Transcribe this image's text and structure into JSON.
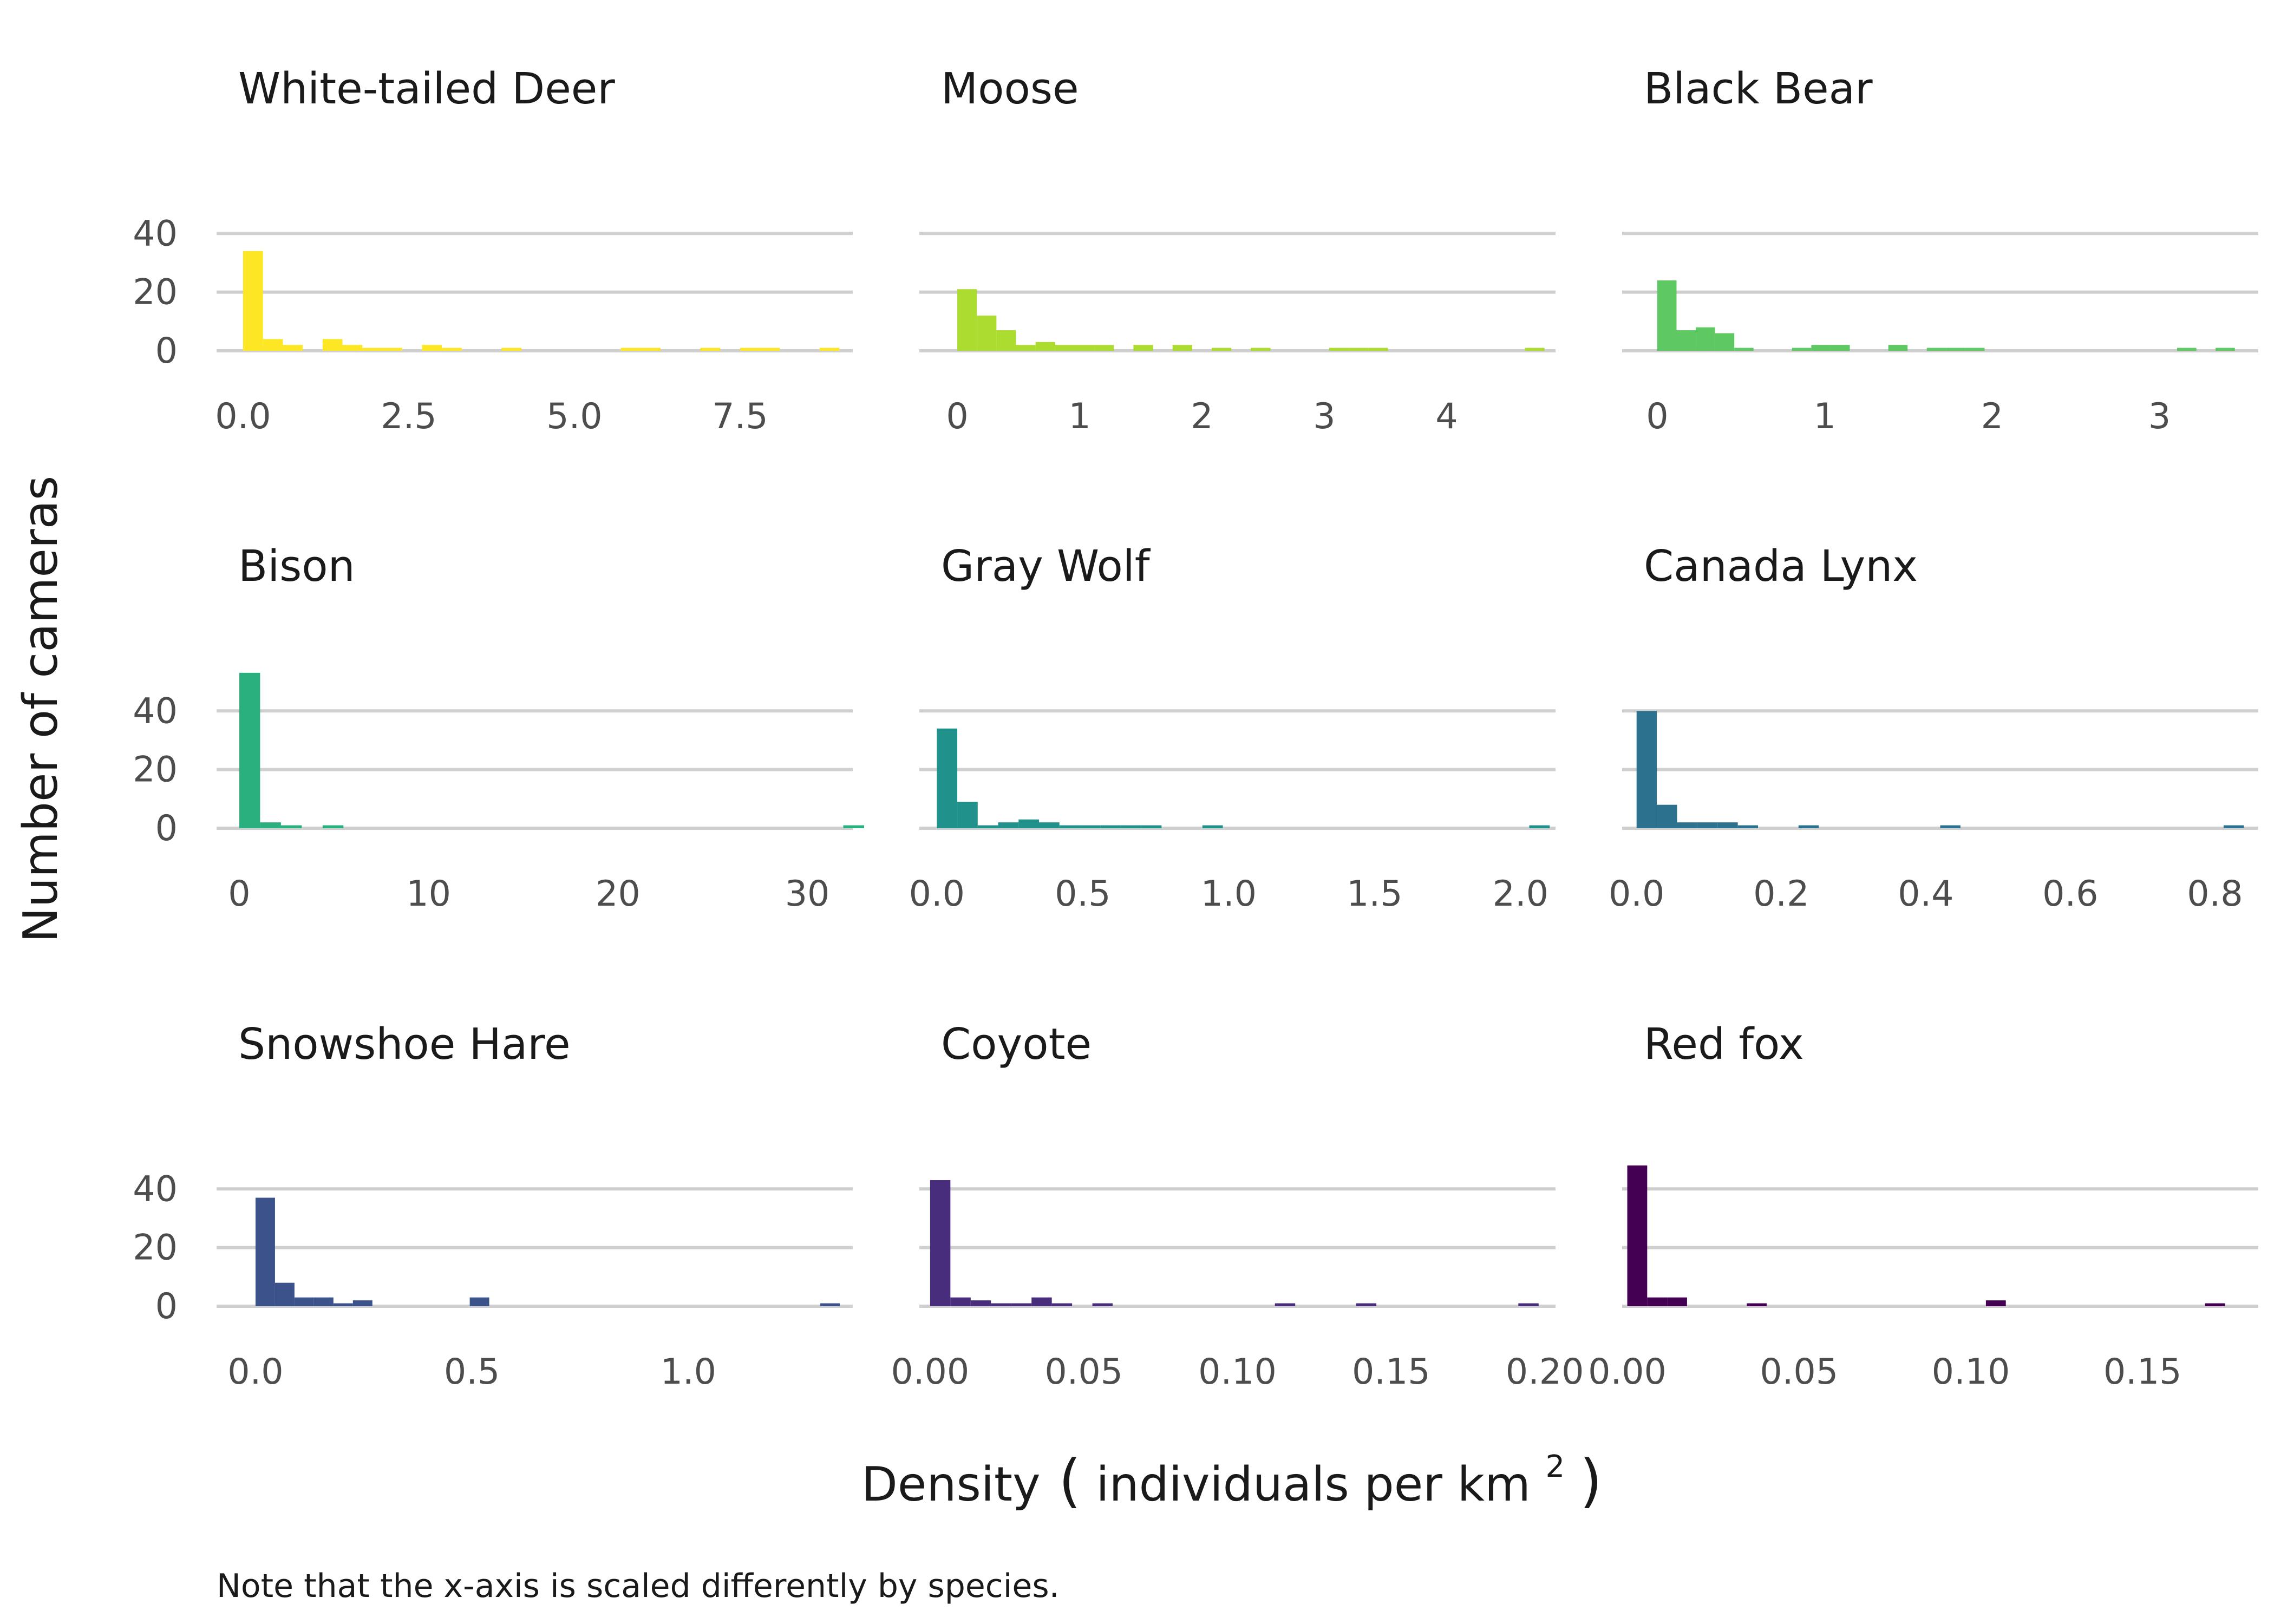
{
  "chart_data": {
    "type": "bar",
    "ylabel": "Number of cameras",
    "xlabel_main": "Density",
    "xlabel_inner": "individuals per km",
    "xlabel_superscript": "2",
    "caption": "Note that the x-axis is scaled differently by species.",
    "ylim": [
      0,
      55
    ],
    "y_ticks": [
      0,
      20,
      40
    ],
    "grid": true,
    "legend": "none",
    "panels": [
      {
        "title": "White-tailed Deer",
        "color": "#FDE725",
        "xlim": [
          -0.4,
          9.2
        ],
        "x_ticks": [
          0.0,
          2.5,
          5.0,
          7.5
        ],
        "x_tick_labels": [
          "0.0",
          "2.5",
          "5.0",
          "7.5"
        ],
        "bin_width": 0.3,
        "bins": [
          [
            0.0,
            34
          ],
          [
            0.3,
            4
          ],
          [
            0.6,
            2
          ],
          [
            1.2,
            4
          ],
          [
            1.5,
            2
          ],
          [
            1.8,
            1
          ],
          [
            2.1,
            1
          ],
          [
            2.7,
            2
          ],
          [
            3.0,
            1
          ],
          [
            3.9,
            1
          ],
          [
            5.7,
            1
          ],
          [
            6.0,
            1
          ],
          [
            6.9,
            1
          ],
          [
            7.5,
            1
          ],
          [
            7.8,
            1
          ],
          [
            8.7,
            1
          ]
        ]
      },
      {
        "title": "Moose",
        "color": "#ADDC30",
        "xlim": [
          -0.31,
          4.89
        ],
        "x_ticks": [
          0,
          1,
          2,
          3,
          4
        ],
        "x_tick_labels": [
          "0",
          "1",
          "2",
          "3",
          "4"
        ],
        "bin_width": 0.16,
        "bins": [
          [
            0.0,
            21
          ],
          [
            0.16,
            12
          ],
          [
            0.32,
            7
          ],
          [
            0.48,
            2
          ],
          [
            0.64,
            3
          ],
          [
            0.8,
            2
          ],
          [
            0.96,
            2
          ],
          [
            1.12,
            2
          ],
          [
            1.44,
            2
          ],
          [
            1.76,
            2
          ],
          [
            2.08,
            1
          ],
          [
            2.4,
            1
          ],
          [
            3.04,
            1
          ],
          [
            3.2,
            1
          ],
          [
            3.36,
            1
          ],
          [
            4.64,
            1
          ]
        ]
      },
      {
        "title": "Black Bear",
        "color": "#5EC962",
        "xlim": [
          -0.21,
          3.59
        ],
        "x_ticks": [
          0,
          1,
          2,
          3
        ],
        "x_tick_labels": [
          "0",
          "1",
          "2",
          "3"
        ],
        "bin_width": 0.115,
        "bins": [
          [
            0.0,
            24
          ],
          [
            0.115,
            7
          ],
          [
            0.23,
            8
          ],
          [
            0.345,
            6
          ],
          [
            0.46,
            1
          ],
          [
            0.805,
            1
          ],
          [
            0.92,
            2
          ],
          [
            1.035,
            2
          ],
          [
            1.38,
            2
          ],
          [
            1.61,
            1
          ],
          [
            1.725,
            1
          ],
          [
            1.84,
            1
          ],
          [
            3.105,
            1
          ],
          [
            3.335,
            1
          ]
        ]
      },
      {
        "title": "Bison",
        "color": "#2AB07F",
        "xlim": [
          -1.2,
          32.4
        ],
        "x_ticks": [
          0,
          10,
          20,
          30
        ],
        "x_tick_labels": [
          "0",
          "10",
          "20",
          "30"
        ],
        "bin_width": 1.1,
        "bins": [
          [
            0.0,
            53
          ],
          [
            1.1,
            2
          ],
          [
            2.2,
            1
          ],
          [
            4.4,
            1
          ],
          [
            31.9,
            1
          ]
        ]
      },
      {
        "title": "Gray Wolf",
        "color": "#21918C",
        "xlim": [
          -0.06,
          2.12
        ],
        "x_ticks": [
          0.0,
          0.5,
          1.0,
          1.5,
          2.0
        ],
        "x_tick_labels": [
          "0.0",
          "0.5",
          "1.0",
          "1.5",
          "2.0"
        ],
        "bin_width": 0.07,
        "bins": [
          [
            0.0,
            34
          ],
          [
            0.07,
            9
          ],
          [
            0.14,
            1
          ],
          [
            0.21,
            2
          ],
          [
            0.28,
            3
          ],
          [
            0.35,
            2
          ],
          [
            0.42,
            1
          ],
          [
            0.49,
            1
          ],
          [
            0.56,
            1
          ],
          [
            0.63,
            1
          ],
          [
            0.7,
            1
          ],
          [
            0.91,
            1
          ],
          [
            2.03,
            1
          ]
        ]
      },
      {
        "title": "Canada Lynx",
        "color": "#2C728E",
        "xlim": [
          -0.02,
          0.86
        ],
        "x_ticks": [
          0.0,
          0.2,
          0.4,
          0.6,
          0.8
        ],
        "x_tick_labels": [
          "0.0",
          "0.2",
          "0.4",
          "0.6",
          "0.8"
        ],
        "bin_width": 0.028,
        "bins": [
          [
            0.0,
            40
          ],
          [
            0.028,
            8
          ],
          [
            0.056,
            2
          ],
          [
            0.084,
            2
          ],
          [
            0.112,
            2
          ],
          [
            0.14,
            1
          ],
          [
            0.224,
            1
          ],
          [
            0.42,
            1
          ],
          [
            0.812,
            1
          ]
        ]
      },
      {
        "title": "Snowshoe Hare",
        "color": "#3B528B",
        "xlim": [
          -0.09,
          1.38
        ],
        "x_ticks": [
          0.0,
          0.5,
          1.0
        ],
        "x_tick_labels": [
          "0.0",
          "0.5",
          "1.0"
        ],
        "bin_width": 0.045,
        "bins": [
          [
            0.0,
            37
          ],
          [
            0.045,
            8
          ],
          [
            0.09,
            3
          ],
          [
            0.135,
            3
          ],
          [
            0.18,
            1
          ],
          [
            0.225,
            2
          ],
          [
            0.495,
            3
          ],
          [
            1.305,
            1
          ]
        ]
      },
      {
        "title": "Coyote",
        "color": "#472D7B",
        "xlim": [
          -0.0035,
          0.2035
        ],
        "x_ticks": [
          0.0,
          0.05,
          0.1,
          0.15,
          0.2
        ],
        "x_tick_labels": [
          "0.00",
          "0.05",
          "0.10",
          "0.15",
          "0.20"
        ],
        "bin_width": 0.0066,
        "bins": [
          [
            0.0,
            43
          ],
          [
            0.0066,
            3
          ],
          [
            0.0132,
            2
          ],
          [
            0.0198,
            1
          ],
          [
            0.0264,
            1
          ],
          [
            0.033,
            3
          ],
          [
            0.0396,
            1
          ],
          [
            0.0528,
            1
          ],
          [
            0.1122,
            1
          ],
          [
            0.1386,
            1
          ],
          [
            0.1914,
            1
          ]
        ]
      },
      {
        "title": "Red fox",
        "color": "#440154",
        "xlim": [
          -0.0015,
          0.1837
        ],
        "x_ticks": [
          0.0,
          0.05,
          0.1,
          0.15
        ],
        "x_tick_labels": [
          "0.00",
          "0.05",
          "0.10",
          "0.15"
        ],
        "bin_width": 0.0058,
        "bins": [
          [
            0.0,
            48
          ],
          [
            0.0058,
            3
          ],
          [
            0.0116,
            3
          ],
          [
            0.0348,
            1
          ],
          [
            0.1044,
            2
          ],
          [
            0.1682,
            1
          ]
        ]
      }
    ]
  }
}
